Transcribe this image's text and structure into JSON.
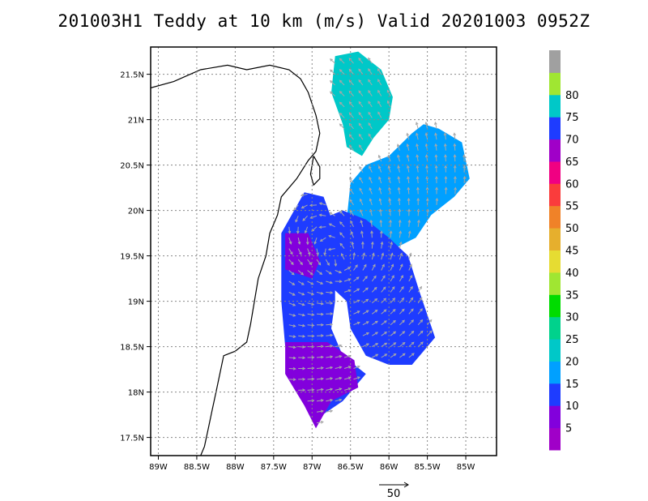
{
  "title": "201003H1 Teddy at 10 km (m/s) Valid 20201003 0952Z",
  "chart_data": {
    "type": "heatmap",
    "title": "201003H1 Teddy at 10 km (m/s) Valid 20201003 0952Z",
    "variable": "wind speed",
    "units": "m/s",
    "xlim": [
      -89.1,
      -84.6
    ],
    "ylim": [
      17.3,
      21.8
    ],
    "x_ticks": [
      -89,
      -88.5,
      -88,
      -87.5,
      -87,
      -86.5,
      -86,
      -85.5,
      -85
    ],
    "x_tick_labels": [
      "89W",
      "88.5W",
      "88W",
      "87.5W",
      "87W",
      "86.5W",
      "86W",
      "85.5W",
      "85W"
    ],
    "y_ticks": [
      17.5,
      18,
      18.5,
      19,
      19.5,
      20,
      20.5,
      21,
      21.5
    ],
    "y_tick_labels": [
      "17.5N",
      "18N",
      "18.5N",
      "19N",
      "19.5N",
      "20N",
      "20.5N",
      "21N",
      "21.5N"
    ],
    "grid": true,
    "colorbar": {
      "levels": [
        0,
        5,
        10,
        15,
        20,
        25,
        30,
        35,
        40,
        45,
        50,
        55,
        60,
        65,
        70,
        75,
        80,
        85
      ],
      "labels": [
        "5",
        "10",
        "15",
        "20",
        "25",
        "30",
        "35",
        "40",
        "45",
        "50",
        "55",
        "60",
        "65",
        "70",
        "75",
        "80"
      ],
      "colors": [
        "#a000c8",
        "#8200dc",
        "#1e3cff",
        "#00a0ff",
        "#00c8c8",
        "#00d28c",
        "#00dc00",
        "#a0e632",
        "#e6dc32",
        "#e6af2d",
        "#f08228",
        "#fa3c3c",
        "#f00082",
        "#a000c8",
        "#1e3cff",
        "#00c8c8",
        "#a0e632",
        "#a0a0a0"
      ]
    },
    "wind_field_regions": [
      {
        "name": "northern swath",
        "typical_speed": 20,
        "polygon": [
          [
            -86.7,
            21.7
          ],
          [
            -86.4,
            21.75
          ],
          [
            -86.1,
            21.55
          ],
          [
            -85.95,
            21.25
          ],
          [
            -86.0,
            21.0
          ],
          [
            -86.2,
            20.8
          ],
          [
            -86.35,
            20.6
          ],
          [
            -86.55,
            20.7
          ],
          [
            -86.6,
            20.95
          ],
          [
            -86.75,
            21.3
          ]
        ]
      },
      {
        "name": "north-east swath",
        "typical_speed": 17,
        "polygon": [
          [
            -86.5,
            20.3
          ],
          [
            -86.3,
            20.5
          ],
          [
            -86.0,
            20.6
          ],
          [
            -85.7,
            20.85
          ],
          [
            -85.55,
            20.95
          ],
          [
            -85.35,
            20.9
          ],
          [
            -85.05,
            20.75
          ],
          [
            -84.95,
            20.35
          ],
          [
            -85.15,
            20.15
          ],
          [
            -85.45,
            19.95
          ],
          [
            -85.65,
            19.7
          ],
          [
            -86.0,
            19.55
          ],
          [
            -86.35,
            19.65
          ],
          [
            -86.55,
            19.9
          ]
        ]
      },
      {
        "name": "inner core east",
        "typical_speed": 14,
        "polygon": [
          [
            -86.9,
            19.9
          ],
          [
            -86.6,
            20.0
          ],
          [
            -86.3,
            19.9
          ],
          [
            -86.0,
            19.7
          ],
          [
            -85.75,
            19.5
          ],
          [
            -85.6,
            19.1
          ],
          [
            -85.5,
            18.85
          ],
          [
            -85.4,
            18.6
          ],
          [
            -85.7,
            18.3
          ],
          [
            -86.0,
            18.3
          ],
          [
            -86.3,
            18.4
          ],
          [
            -86.5,
            18.7
          ],
          [
            -86.55,
            19.0
          ],
          [
            -86.8,
            19.2
          ],
          [
            -87.0,
            19.5
          ]
        ]
      },
      {
        "name": "inner core west",
        "typical_speed": 12,
        "polygon": [
          [
            -87.4,
            19.75
          ],
          [
            -87.1,
            20.2
          ],
          [
            -86.85,
            20.15
          ],
          [
            -86.7,
            19.8
          ],
          [
            -86.7,
            19.0
          ],
          [
            -86.75,
            18.7
          ],
          [
            -86.6,
            18.4
          ],
          [
            -86.3,
            18.2
          ],
          [
            -86.6,
            17.9
          ],
          [
            -86.95,
            17.7
          ],
          [
            -87.1,
            17.9
          ],
          [
            -87.25,
            18.15
          ],
          [
            -87.35,
            18.5
          ],
          [
            -87.4,
            19.0
          ]
        ]
      },
      {
        "name": "western eyewall",
        "typical_speed": 7,
        "polygon": [
          [
            -87.35,
            19.75
          ],
          [
            -87.05,
            19.75
          ],
          [
            -86.9,
            19.45
          ],
          [
            -87.0,
            19.25
          ],
          [
            -87.35,
            19.35
          ]
        ]
      },
      {
        "name": "southern band",
        "typical_speed": 6,
        "polygon": [
          [
            -87.35,
            18.55
          ],
          [
            -86.8,
            18.55
          ],
          [
            -86.45,
            18.35
          ],
          [
            -86.4,
            18.05
          ],
          [
            -86.75,
            17.9
          ],
          [
            -86.95,
            17.6
          ],
          [
            -87.1,
            17.85
          ],
          [
            -87.35,
            18.2
          ]
        ]
      }
    ],
    "reference_vector": {
      "label": "50",
      "units": "m/s"
    }
  }
}
